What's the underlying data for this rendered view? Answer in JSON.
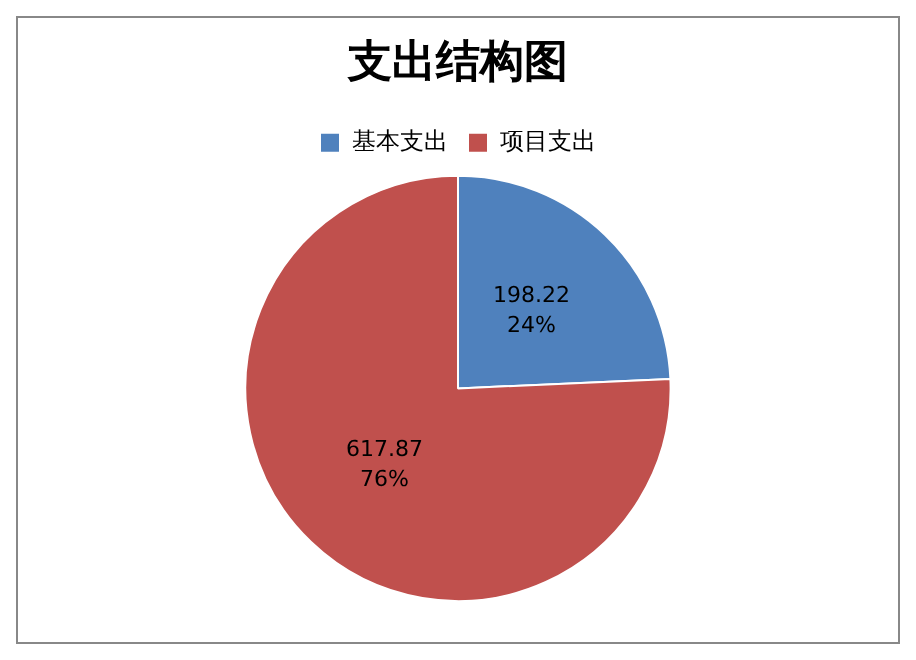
{
  "chart_data": {
    "type": "pie",
    "title": "支出结构图",
    "legend": "top",
    "categories": [
      "基本支出",
      "项目支出"
    ],
    "values": [
      198.22,
      617.87
    ],
    "colors": [
      "#4f81bd",
      "#c0504d"
    ],
    "value_labels": [
      "198.22\n24%",
      "617.87\n76%"
    ]
  }
}
